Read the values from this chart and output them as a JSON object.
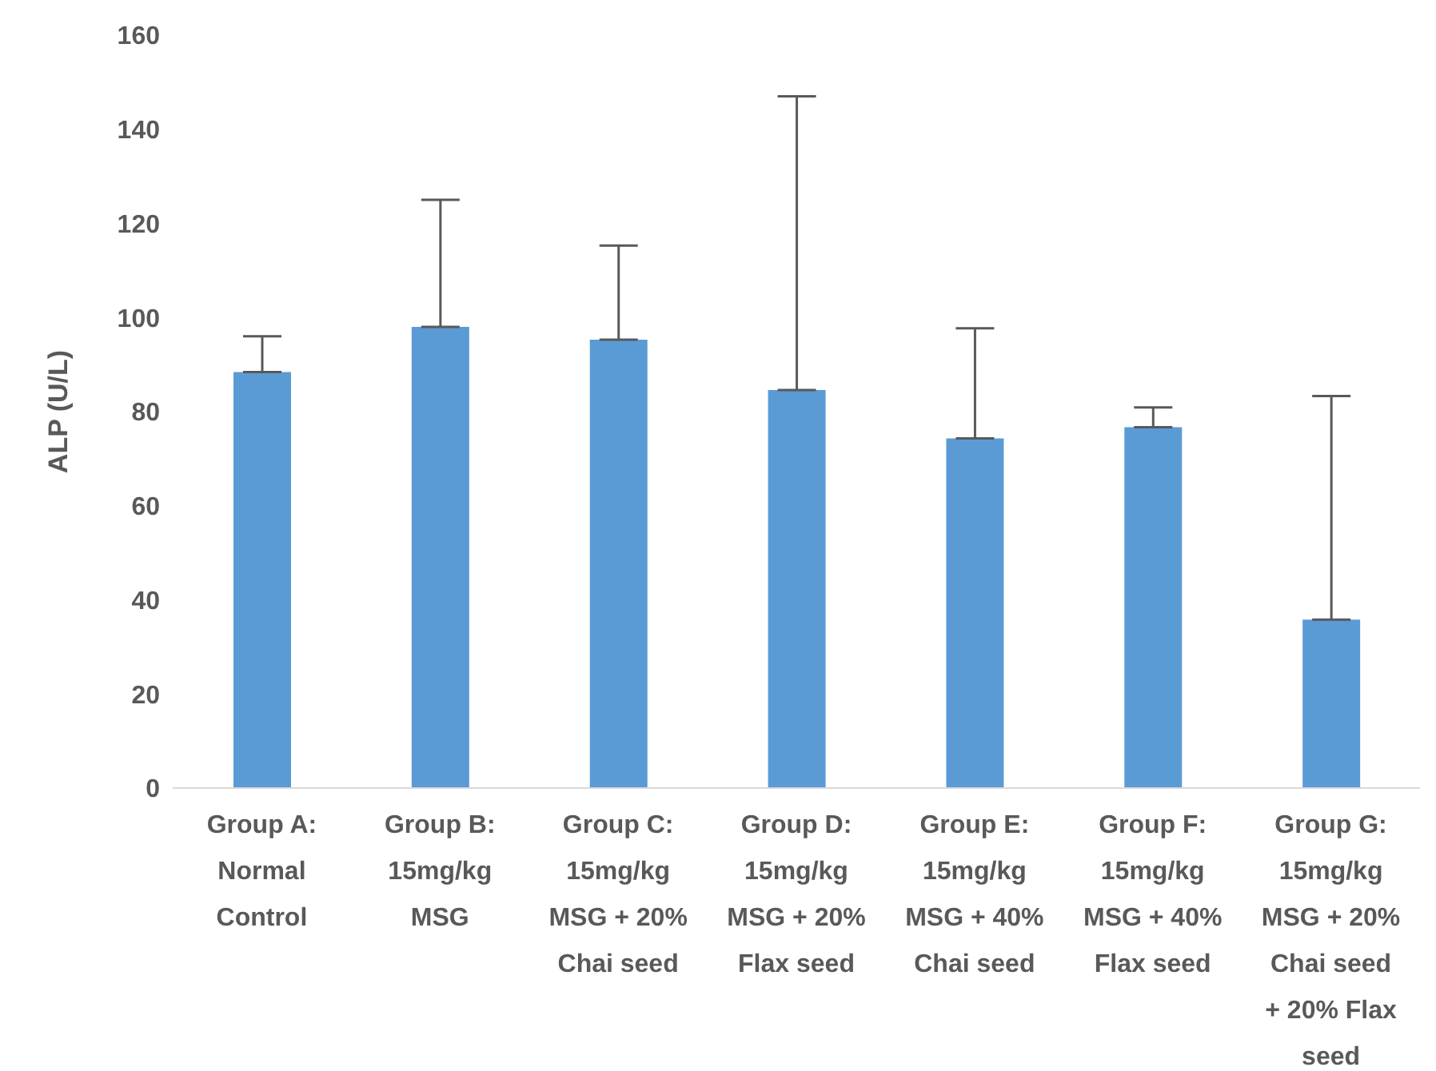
{
  "chart_data": {
    "type": "bar",
    "ylabel": "ALP (U/L)",
    "categories": [
      "Group A: Normal Control",
      "Group B: 15mg/kg MSG",
      "Group C: 15mg/kg MSG + 20% Chai seed",
      "Group D: 15mg/kg MSG + 20% Flax seed",
      "Group E: 15mg/kg MSG + 40% Chai seed",
      "Group F: 15mg/kg MSG + 40% Flax seed",
      "Group G: 15mg/kg MSG + 20% Chai seed + 20% Flax seed"
    ],
    "values": [
      88.4,
      98,
      95.3,
      84.6,
      74.3,
      76.7,
      35.8
    ],
    "errors": [
      [
        88.4,
        96
      ],
      [
        98,
        125
      ],
      [
        95.3,
        115.3
      ],
      [
        84.6,
        147
      ],
      [
        74.3,
        97.7
      ],
      [
        76.7,
        80.9
      ],
      [
        35.8,
        83.3
      ]
    ],
    "color": "#5b9bd5",
    "ylim": [
      0,
      160
    ],
    "yticks": [
      0,
      20,
      40,
      60,
      80,
      100,
      120,
      140,
      160
    ],
    "grid": false
  }
}
